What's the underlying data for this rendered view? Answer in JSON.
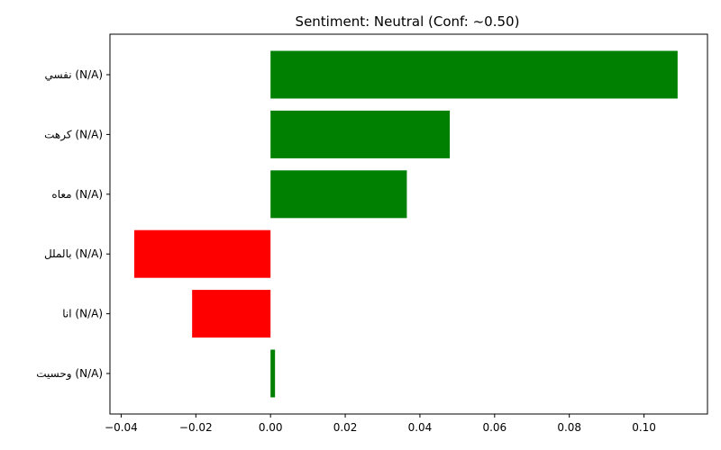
{
  "chart_data": {
    "type": "bar",
    "orientation": "horizontal",
    "title": "Sentiment: Neutral (Conf: ~0.50)",
    "xlabel": "",
    "ylabel": "",
    "xlim": [
      -0.043,
      0.117
    ],
    "xticks": [
      -0.04,
      -0.02,
      0.0,
      0.02,
      0.04,
      0.06,
      0.08,
      0.1
    ],
    "xtick_labels": [
      "−0.04",
      "−0.02",
      "0.00",
      "0.02",
      "0.04",
      "0.06",
      "0.08",
      "0.10"
    ],
    "categories": [
      "نفسي (N/A)",
      "كرهت (N/A)",
      "معاه (N/A)",
      "بالملل (N/A)",
      "انا (N/A)",
      "وحسيت (N/A)"
    ],
    "values": [
      0.109,
      0.048,
      0.0365,
      -0.0365,
      -0.021,
      0.0012
    ],
    "positive_color": "#008000",
    "negative_color": "#ff0000",
    "grid": false,
    "legend": "none"
  }
}
